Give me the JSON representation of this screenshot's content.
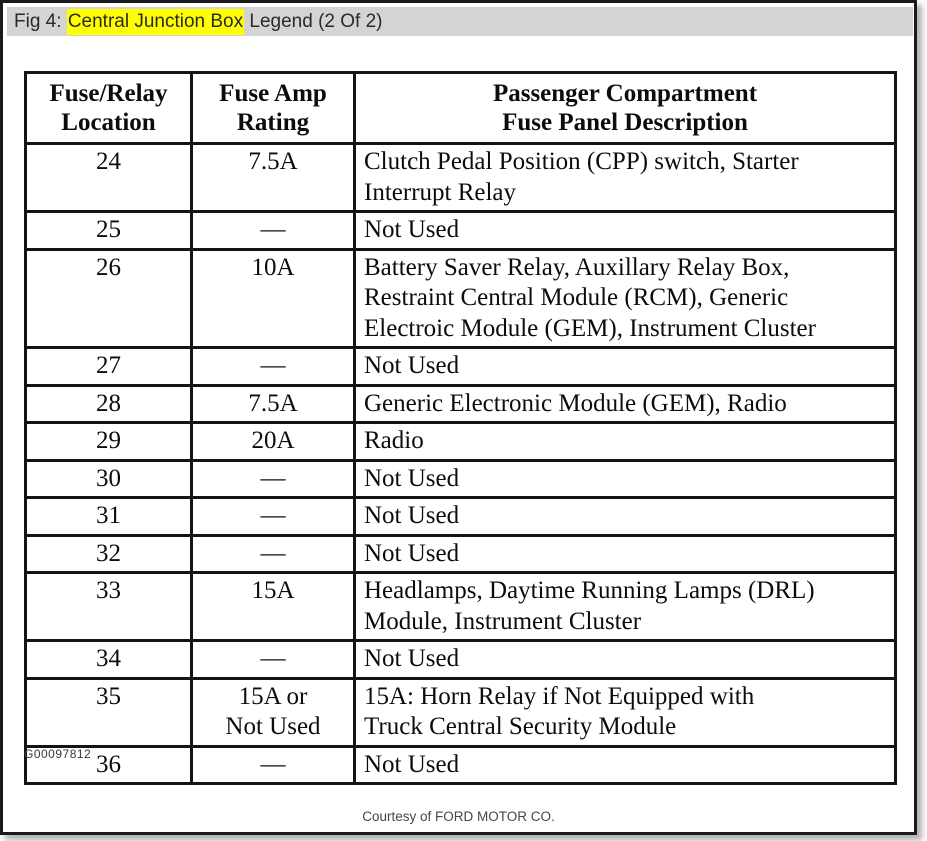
{
  "title_bar": {
    "prefix": "Fig 4: ",
    "highlighted": "Central Junction Box",
    "suffix": " Legend (2 Of 2)",
    "bar_color": "#d4d4d4",
    "highlight_color": "#ffff00"
  },
  "table": {
    "columns": [
      "Fuse/Relay\nLocation",
      "Fuse Amp\nRating",
      "Passenger Compartment\nFuse Panel Description"
    ],
    "rows": [
      {
        "location": "24",
        "rating": "7.5A",
        "description": "Clutch Pedal Position (CPP) switch, Starter\nInterrupt Relay"
      },
      {
        "location": "25",
        "rating": "—",
        "description": "Not Used"
      },
      {
        "location": "26",
        "rating": "10A",
        "description": "Battery Saver Relay, Auxillary Relay Box,\nRestraint Central Module (RCM), Generic\nElectroic Module (GEM), Instrument Cluster"
      },
      {
        "location": "27",
        "rating": "—",
        "description": "Not Used"
      },
      {
        "location": "28",
        "rating": "7.5A",
        "description": "Generic Electronic Module (GEM), Radio"
      },
      {
        "location": "29",
        "rating": "20A",
        "description": "Radio"
      },
      {
        "location": "30",
        "rating": "—",
        "description": "Not Used"
      },
      {
        "location": "31",
        "rating": "—",
        "description": "Not Used"
      },
      {
        "location": "32",
        "rating": "—",
        "description": "Not Used"
      },
      {
        "location": "33",
        "rating": "15A",
        "description": "Headlamps, Daytime Running Lamps (DRL)\nModule, Instrument Cluster"
      },
      {
        "location": "34",
        "rating": "—",
        "description": "Not Used"
      },
      {
        "location": "35",
        "rating": "15A or\nNot Used",
        "description": "15A: Horn Relay if Not Equipped with\nTruck Central Security Module"
      },
      {
        "location": "36",
        "rating": "—",
        "description": "Not Used"
      }
    ]
  },
  "footer": {
    "figure_id": "G00097812",
    "courtesy": "Courtesy of FORD MOTOR CO."
  }
}
